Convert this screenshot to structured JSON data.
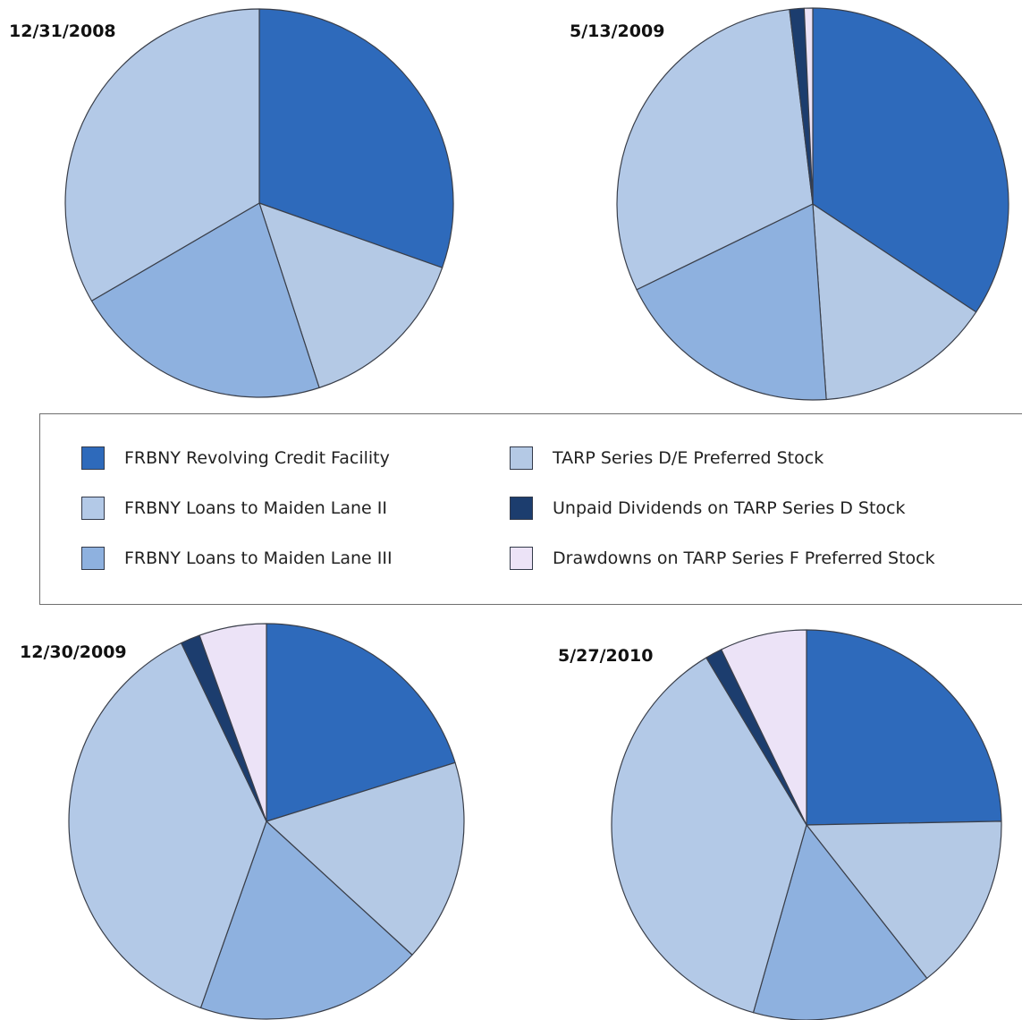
{
  "chart_data": [
    {
      "type": "pie",
      "title": "12/31/2008",
      "series": [
        {
          "name": "FRBNY Revolving Credit Facility",
          "value": 30.4
        },
        {
          "name": "TARP Series D/E Preferred Stock",
          "value": 14.6
        },
        {
          "name": "FRBNY Loans to Maiden Lane III",
          "value": 21.6
        },
        {
          "name": "FRBNY Loans to Maiden Lane II",
          "value": 33.4
        }
      ]
    },
    {
      "type": "pie",
      "title": "5/13/2009",
      "series": [
        {
          "name": "FRBNY Revolving Credit Facility",
          "value": 34.3
        },
        {
          "name": "TARP Series D/E Preferred Stock",
          "value": 14.6
        },
        {
          "name": "FRBNY Loans to Maiden Lane III",
          "value": 18.9
        },
        {
          "name": "FRBNY Loans to Maiden Lane II",
          "value": 30.3
        },
        {
          "name": "Unpaid Dividends on TARP Series D Stock",
          "value": 1.2
        },
        {
          "name": "Drawdowns on TARP Series F Preferred Stock",
          "value": 0.7
        }
      ]
    },
    {
      "type": "pie",
      "title": "12/30/2009",
      "series": [
        {
          "name": "FRBNY Revolving Credit Facility",
          "value": 20.2
        },
        {
          "name": "TARP Series D/E Preferred Stock",
          "value": 16.6
        },
        {
          "name": "FRBNY Loans to Maiden Lane III",
          "value": 18.6
        },
        {
          "name": "FRBNY Loans to Maiden Lane II",
          "value": 37.5
        },
        {
          "name": "Unpaid Dividends on TARP Series D Stock",
          "value": 1.6
        },
        {
          "name": "Drawdowns on TARP Series F Preferred Stock",
          "value": 5.5
        }
      ]
    },
    {
      "type": "pie",
      "title": "5/27/2010",
      "series": [
        {
          "name": "FRBNY Revolving Credit Facility",
          "value": 24.7
        },
        {
          "name": "TARP Series D/E Preferred Stock",
          "value": 14.7
        },
        {
          "name": "FRBNY Loans to Maiden Lane III",
          "value": 15.0
        },
        {
          "name": "FRBNY Loans to Maiden Lane II",
          "value": 37.0
        },
        {
          "name": "Unpaid Dividends on TARP Series D Stock",
          "value": 1.4
        },
        {
          "name": "Drawdowns on TARP Series F Preferred Stock",
          "value": 7.2
        }
      ]
    }
  ],
  "legend": {
    "placement": "center",
    "entries": [
      {
        "label": "FRBNY Revolving Credit Facility",
        "color": "#2e6abb"
      },
      {
        "label": "FRBNY Loans to Maiden Lane II",
        "color": "#b3c9e7"
      },
      {
        "label": "FRBNY Loans to Maiden Lane III",
        "color": "#8eb1df"
      },
      {
        "label": "TARP Series D/E Preferred Stock",
        "color": "#b4c9e5"
      },
      {
        "label": "Unpaid Dividends on TARP Series D Stock",
        "color": "#1c3d6e"
      },
      {
        "label": "Drawdowns on TARP Series F Preferred Stock",
        "color": "#ece3f7"
      }
    ]
  },
  "colors": {
    "FRBNY Revolving Credit Facility": "#2e6abb",
    "FRBNY Loans to Maiden Lane II": "#b3c9e7",
    "FRBNY Loans to Maiden Lane III": "#8eb1df",
    "TARP Series D/E Preferred Stock": "#b4c9e5",
    "Unpaid Dividends on TARP Series D Stock": "#1c3d6e",
    "Drawdowns on TARP Series F Preferred Stock": "#ece3f7",
    "slice_stroke": "#3a3f4a"
  }
}
